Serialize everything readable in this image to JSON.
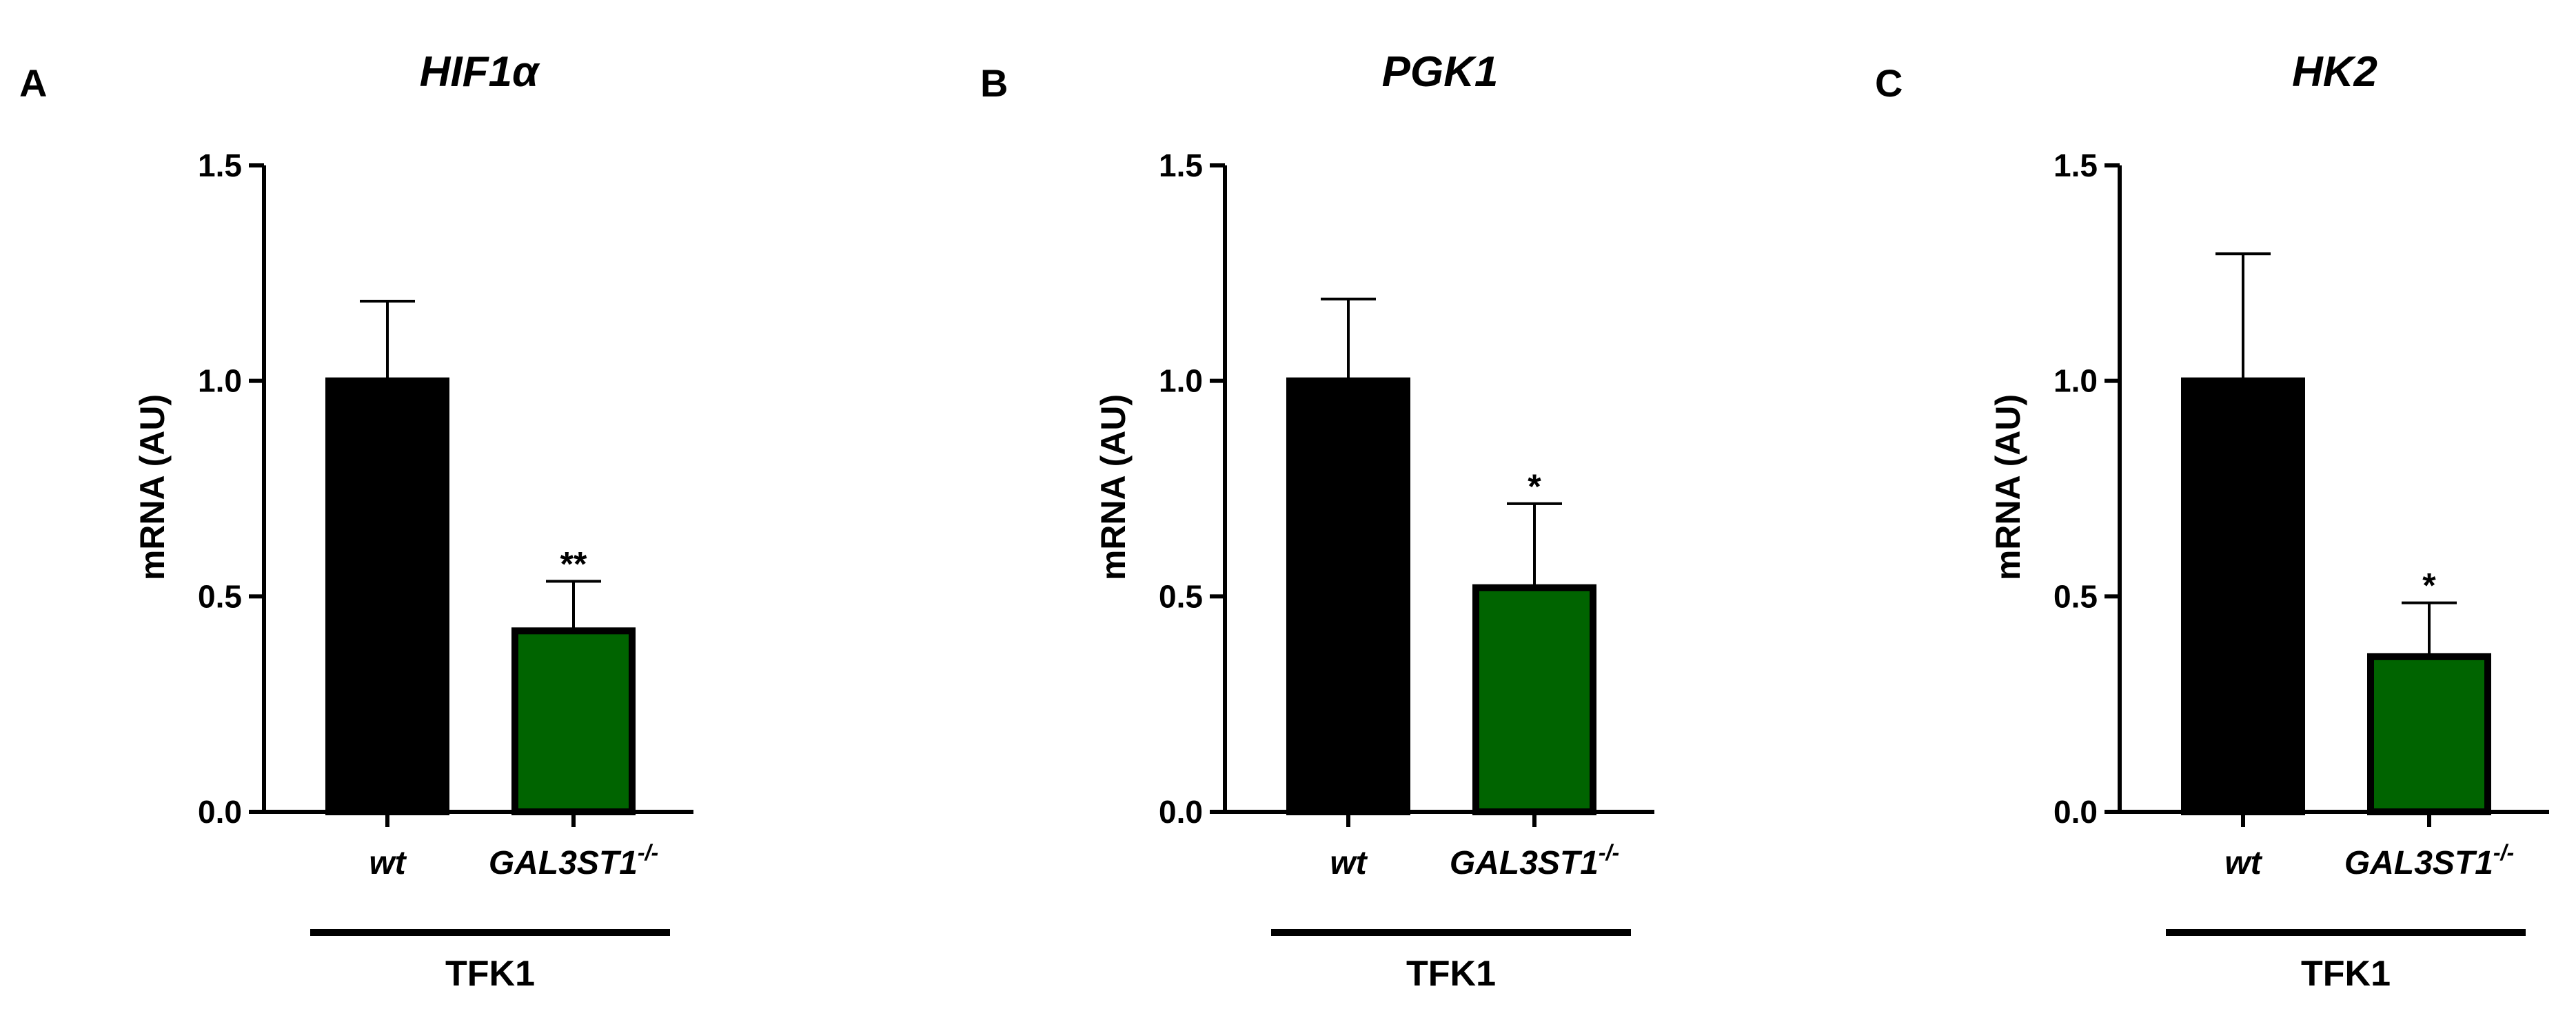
{
  "chart_data": [
    {
      "type": "bar",
      "panel": "A",
      "title": "HIF1α",
      "y_label": "mRNA (AU)",
      "group_label": "TFK1",
      "categories": [
        "wt",
        "GAL3ST1"
      ],
      "category_superscripts": [
        null,
        "-/-"
      ],
      "values": [
        1.0,
        0.42
      ],
      "errors": [
        0.185,
        0.115
      ],
      "annotations": [
        null,
        "**"
      ],
      "colors": [
        "#000000",
        "#006400"
      ],
      "ylim": [
        0,
        1.5
      ],
      "yticks": [
        {
          "value": 0,
          "label": "0.0"
        },
        0.5,
        {
          "value": 1,
          "label": "1.0"
        },
        1.5
      ]
    },
    {
      "type": "bar",
      "panel": "B",
      "title": "PGK1",
      "y_label": "mRNA (AU)",
      "group_label": "TFK1",
      "categories": [
        "wt",
        "GAL3ST1"
      ],
      "category_superscripts": [
        null,
        "-/-"
      ],
      "values": [
        1.0,
        0.52
      ],
      "errors": [
        0.19,
        0.195
      ],
      "annotations": [
        null,
        "*"
      ],
      "colors": [
        "#000000",
        "#006400"
      ],
      "ylim": [
        0,
        1.5
      ],
      "yticks": [
        {
          "value": 0,
          "label": "0.0"
        },
        0.5,
        {
          "value": 1,
          "label": "1.0"
        },
        1.5
      ]
    },
    {
      "type": "bar",
      "panel": "C",
      "title": "HK2",
      "y_label": "mRNA (AU)",
      "group_label": "TFK1",
      "categories": [
        "wt",
        "GAL3ST1"
      ],
      "category_superscripts": [
        null,
        "-/-"
      ],
      "values": [
        1.0,
        0.36
      ],
      "errors": [
        0.295,
        0.125
      ],
      "annotations": [
        null,
        "*"
      ],
      "colors": [
        "#000000",
        "#006400"
      ],
      "ylim": [
        0,
        1.5
      ],
      "yticks": [
        {
          "value": 0,
          "label": "0.0"
        },
        0.5,
        {
          "value": 1,
          "label": "1.0"
        },
        1.5
      ]
    }
  ]
}
